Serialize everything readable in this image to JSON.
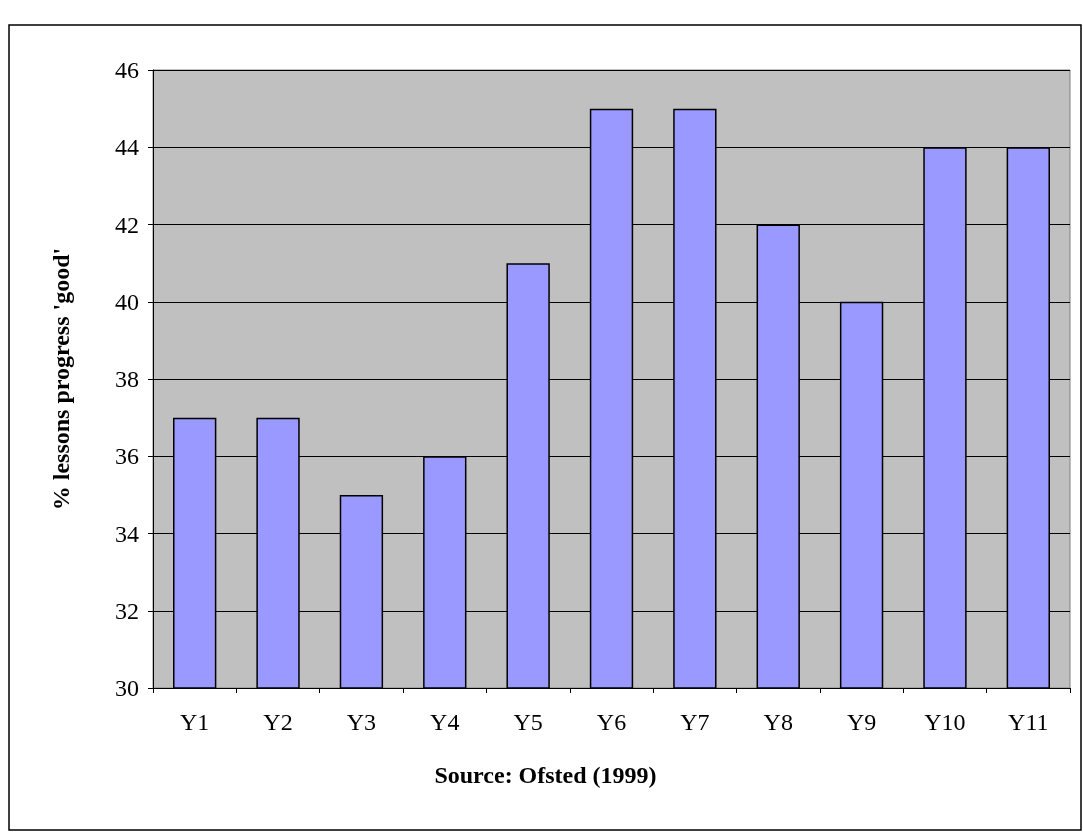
{
  "chart_data": {
    "type": "bar",
    "ylabel": "% lessons progress 'good'",
    "annotations": [
      "Source: Ofsted (1999)"
    ],
    "categories": [
      "Y1",
      "Y2",
      "Y3",
      "Y4",
      "Y5",
      "Y6",
      "Y7",
      "Y8",
      "Y9",
      "Y10",
      "Y11"
    ],
    "values": [
      37,
      37,
      35,
      36,
      41,
      45,
      45,
      42,
      40,
      44,
      44
    ],
    "color": "#9999ff",
    "ylim": [
      30,
      46
    ],
    "yticks": [
      30,
      32,
      34,
      36,
      38,
      40,
      42,
      44,
      46
    ],
    "grid": "y"
  }
}
